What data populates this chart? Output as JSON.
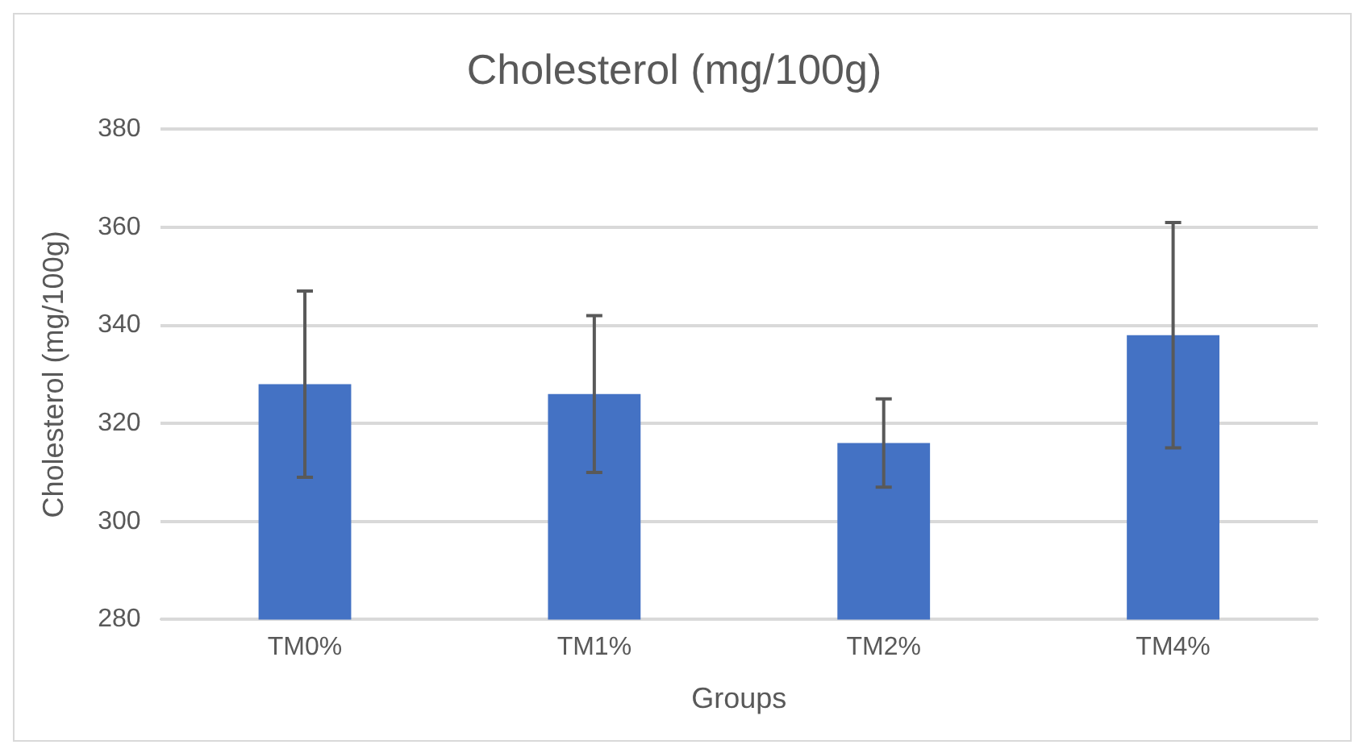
{
  "chart_data": {
    "type": "bar",
    "title": "Cholesterol (mg/100g)",
    "xlabel": "Groups",
    "ylabel": "Cholesterol (mg/100g)",
    "categories": [
      "TM0%",
      "TM1%",
      "TM2%",
      "TM4%"
    ],
    "values": [
      328,
      326,
      316,
      338
    ],
    "errors": [
      19,
      16,
      9,
      23
    ],
    "color": "#4472c4",
    "ylim": [
      280,
      380
    ],
    "yticks": [
      280,
      300,
      320,
      340,
      360,
      380
    ],
    "grid": "y"
  }
}
